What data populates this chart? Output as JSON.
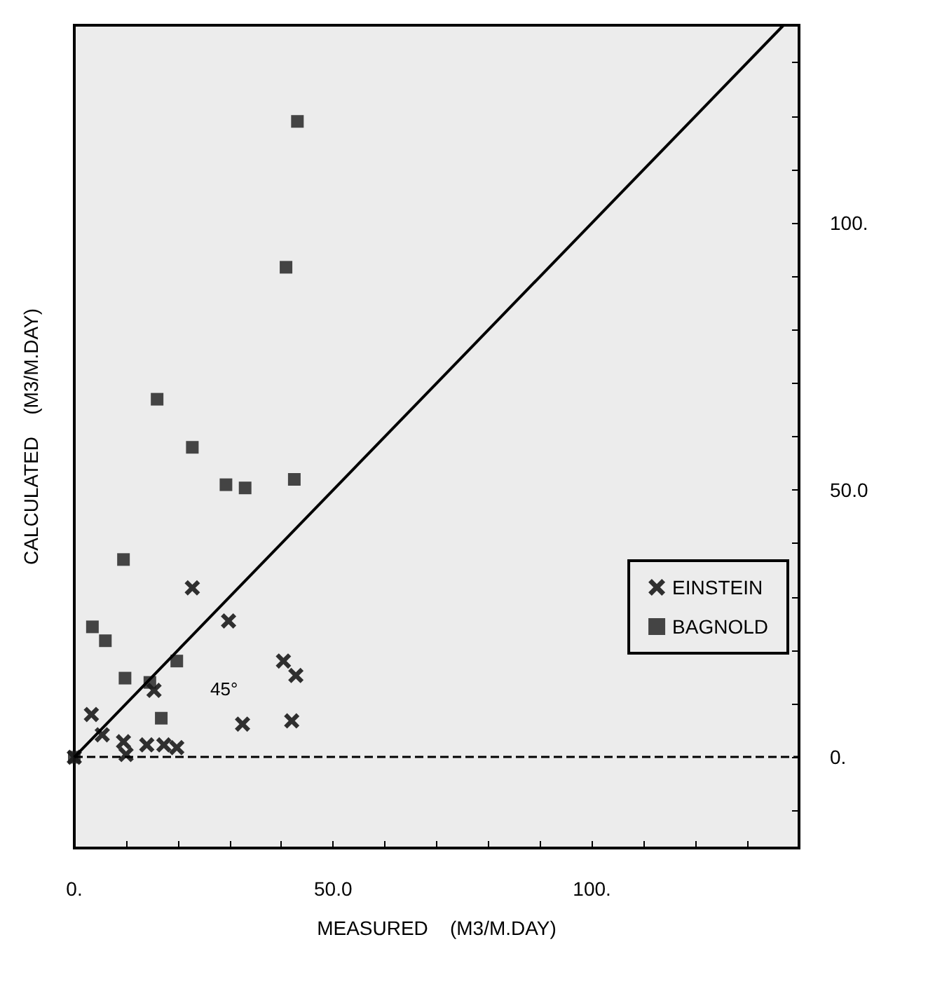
{
  "chart_data": {
    "type": "scatter",
    "xlabel": "MEASURED    (M3/M.DAY)",
    "ylabel": "CALCULATED    (M3/M.DAY)",
    "xlim": [
      0,
      140
    ],
    "ylim": [
      -17,
      137
    ],
    "xticks": [
      {
        "value": 0,
        "label": "0."
      },
      {
        "value": 10,
        "label": null
      },
      {
        "value": 20,
        "label": null
      },
      {
        "value": 30,
        "label": null
      },
      {
        "value": 40,
        "label": null
      },
      {
        "value": 50,
        "label": "50.0"
      },
      {
        "value": 60,
        "label": null
      },
      {
        "value": 70,
        "label": null
      },
      {
        "value": 80,
        "label": null
      },
      {
        "value": 90,
        "label": null
      },
      {
        "value": 100,
        "label": "100."
      },
      {
        "value": 110,
        "label": null
      },
      {
        "value": 120,
        "label": null
      },
      {
        "value": 130,
        "label": null
      }
    ],
    "yticks": [
      {
        "value": -10,
        "label": null
      },
      {
        "value": 0,
        "label": "0."
      },
      {
        "value": 10,
        "label": null
      },
      {
        "value": 20,
        "label": null
      },
      {
        "value": 30,
        "label": null
      },
      {
        "value": 40,
        "label": null
      },
      {
        "value": 50,
        "label": "50.0"
      },
      {
        "value": 60,
        "label": null
      },
      {
        "value": 70,
        "label": null
      },
      {
        "value": 80,
        "label": null
      },
      {
        "value": 90,
        "label": null
      },
      {
        "value": 100,
        "label": "100."
      },
      {
        "value": 110,
        "label": null
      },
      {
        "value": 120,
        "label": null
      },
      {
        "value": 130,
        "label": null
      }
    ],
    "grid": false,
    "legend": "right",
    "series": [
      {
        "name": "EINSTEIN",
        "color": "#000000",
        "marker": "cross",
        "x": [
          0,
          22.8,
          29.8,
          40.4,
          42.8,
          32.5,
          42,
          15.4,
          3.3,
          9.5,
          5.4,
          14,
          17.3,
          19.8,
          10
        ],
        "values": [
          0,
          31.7,
          25.5,
          18,
          15.3,
          6.2,
          6.8,
          12.5,
          8,
          2.9,
          4.2,
          2.3,
          2.3,
          1.8,
          0.5
        ]
      },
      {
        "name": "BAGNOLD",
        "color": "#1a1a1a",
        "marker": "square",
        "x": [
          0,
          43.1,
          40.9,
          16,
          22.8,
          29.3,
          33,
          42.5,
          9.5,
          3.5,
          6,
          19.8,
          9.8,
          14.6,
          16.8
        ],
        "values": [
          0,
          119,
          91.7,
          67,
          58,
          51,
          50.4,
          52,
          37,
          24.4,
          21.8,
          18,
          14.8,
          14,
          7.3
        ]
      },
      {
        "type": "line",
        "color": "#000000",
        "marker": "none",
        "x": [
          0,
          137
        ],
        "values": [
          0,
          137
        ]
      }
    ],
    "ref_lines": [
      {
        "axis": "y",
        "value": 0,
        "label": null,
        "line_style": "dashed",
        "color": "#000000"
      }
    ],
    "annotations": [
      "45°"
    ]
  }
}
